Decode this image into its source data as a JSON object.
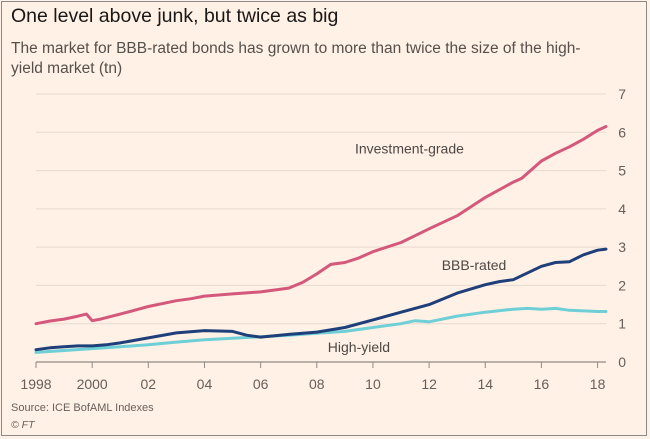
{
  "title": "One level above junk, but twice as big",
  "subtitle": "The market for BBB-rated bonds has grown to more than twice the size of the high-yield market (tn)",
  "source": "Source: ICE BofAML Indexes",
  "credit": "© FT",
  "chart_data": {
    "type": "line",
    "title": "One level above junk, but twice as big",
    "xlabel": "",
    "ylabel": "tn",
    "xlim": [
      1998,
      2018.3
    ],
    "ylim": [
      0,
      7
    ],
    "grid": true,
    "y_ticks": [
      0,
      1,
      2,
      3,
      4,
      5,
      6,
      7
    ],
    "x_ticks": [
      {
        "value": 1998,
        "label": "1998"
      },
      {
        "value": 2000,
        "label": "2000"
      },
      {
        "value": 2002,
        "label": "02"
      },
      {
        "value": 2004,
        "label": "04"
      },
      {
        "value": 2006,
        "label": "06"
      },
      {
        "value": 2008,
        "label": "08"
      },
      {
        "value": 2010,
        "label": "10"
      },
      {
        "value": 2012,
        "label": "12"
      },
      {
        "value": 2014,
        "label": "14"
      },
      {
        "value": 2016,
        "label": "16"
      },
      {
        "value": 2018,
        "label": "18"
      }
    ],
    "series": [
      {
        "name": "Investment-grade",
        "color": "#d4587c",
        "label_at": [
          2011.3,
          5.45
        ],
        "x": [
          1998,
          1998.5,
          1999,
          1999.5,
          1999.8,
          2000,
          2000.3,
          2001,
          2001.5,
          2002,
          2003,
          2003.5,
          2004,
          2005,
          2006,
          2007,
          2007.5,
          2008,
          2008.5,
          2009,
          2009.5,
          2010,
          2010.5,
          2011,
          2011.5,
          2012,
          2013,
          2014,
          2015,
          2015.3,
          2016,
          2016.5,
          2017,
          2017.5,
          2018,
          2018.3
        ],
        "values": [
          1.0,
          1.07,
          1.12,
          1.2,
          1.25,
          1.08,
          1.12,
          1.25,
          1.35,
          1.45,
          1.6,
          1.65,
          1.72,
          1.78,
          1.83,
          1.93,
          2.08,
          2.3,
          2.55,
          2.6,
          2.72,
          2.88,
          3.0,
          3.12,
          3.3,
          3.48,
          3.82,
          4.3,
          4.7,
          4.8,
          5.25,
          5.45,
          5.62,
          5.82,
          6.05,
          6.15
        ]
      },
      {
        "name": "BBB-rated",
        "color": "#1f3f7a",
        "label_at": [
          2013.6,
          2.4
        ],
        "x": [
          1998,
          1998.5,
          1999,
          1999.5,
          2000,
          2000.5,
          2001,
          2002,
          2003,
          2004,
          2005,
          2005.5,
          2006,
          2007,
          2008,
          2009,
          2010,
          2011,
          2012,
          2013,
          2014,
          2014.5,
          2015,
          2016,
          2016.5,
          2017,
          2017.5,
          2018,
          2018.3
        ],
        "values": [
          0.32,
          0.37,
          0.4,
          0.42,
          0.42,
          0.45,
          0.5,
          0.63,
          0.76,
          0.82,
          0.8,
          0.7,
          0.65,
          0.72,
          0.78,
          0.9,
          1.1,
          1.3,
          1.5,
          1.8,
          2.02,
          2.1,
          2.15,
          2.5,
          2.6,
          2.62,
          2.8,
          2.92,
          2.95
        ]
      },
      {
        "name": "High-yield",
        "color": "#6ecfd6",
        "label_at": [
          2009.5,
          0.26
        ],
        "x": [
          1998,
          1999,
          2000,
          2001,
          2002,
          2003,
          2004,
          2005,
          2006,
          2007,
          2008,
          2009,
          2010,
          2011,
          2011.5,
          2012,
          2013,
          2014,
          2015,
          2015.5,
          2016,
          2016.5,
          2017,
          2018,
          2018.3
        ],
        "values": [
          0.25,
          0.3,
          0.35,
          0.4,
          0.45,
          0.52,
          0.58,
          0.62,
          0.66,
          0.7,
          0.75,
          0.8,
          0.9,
          1.0,
          1.08,
          1.05,
          1.2,
          1.3,
          1.38,
          1.4,
          1.38,
          1.4,
          1.35,
          1.32,
          1.32
        ]
      }
    ]
  }
}
